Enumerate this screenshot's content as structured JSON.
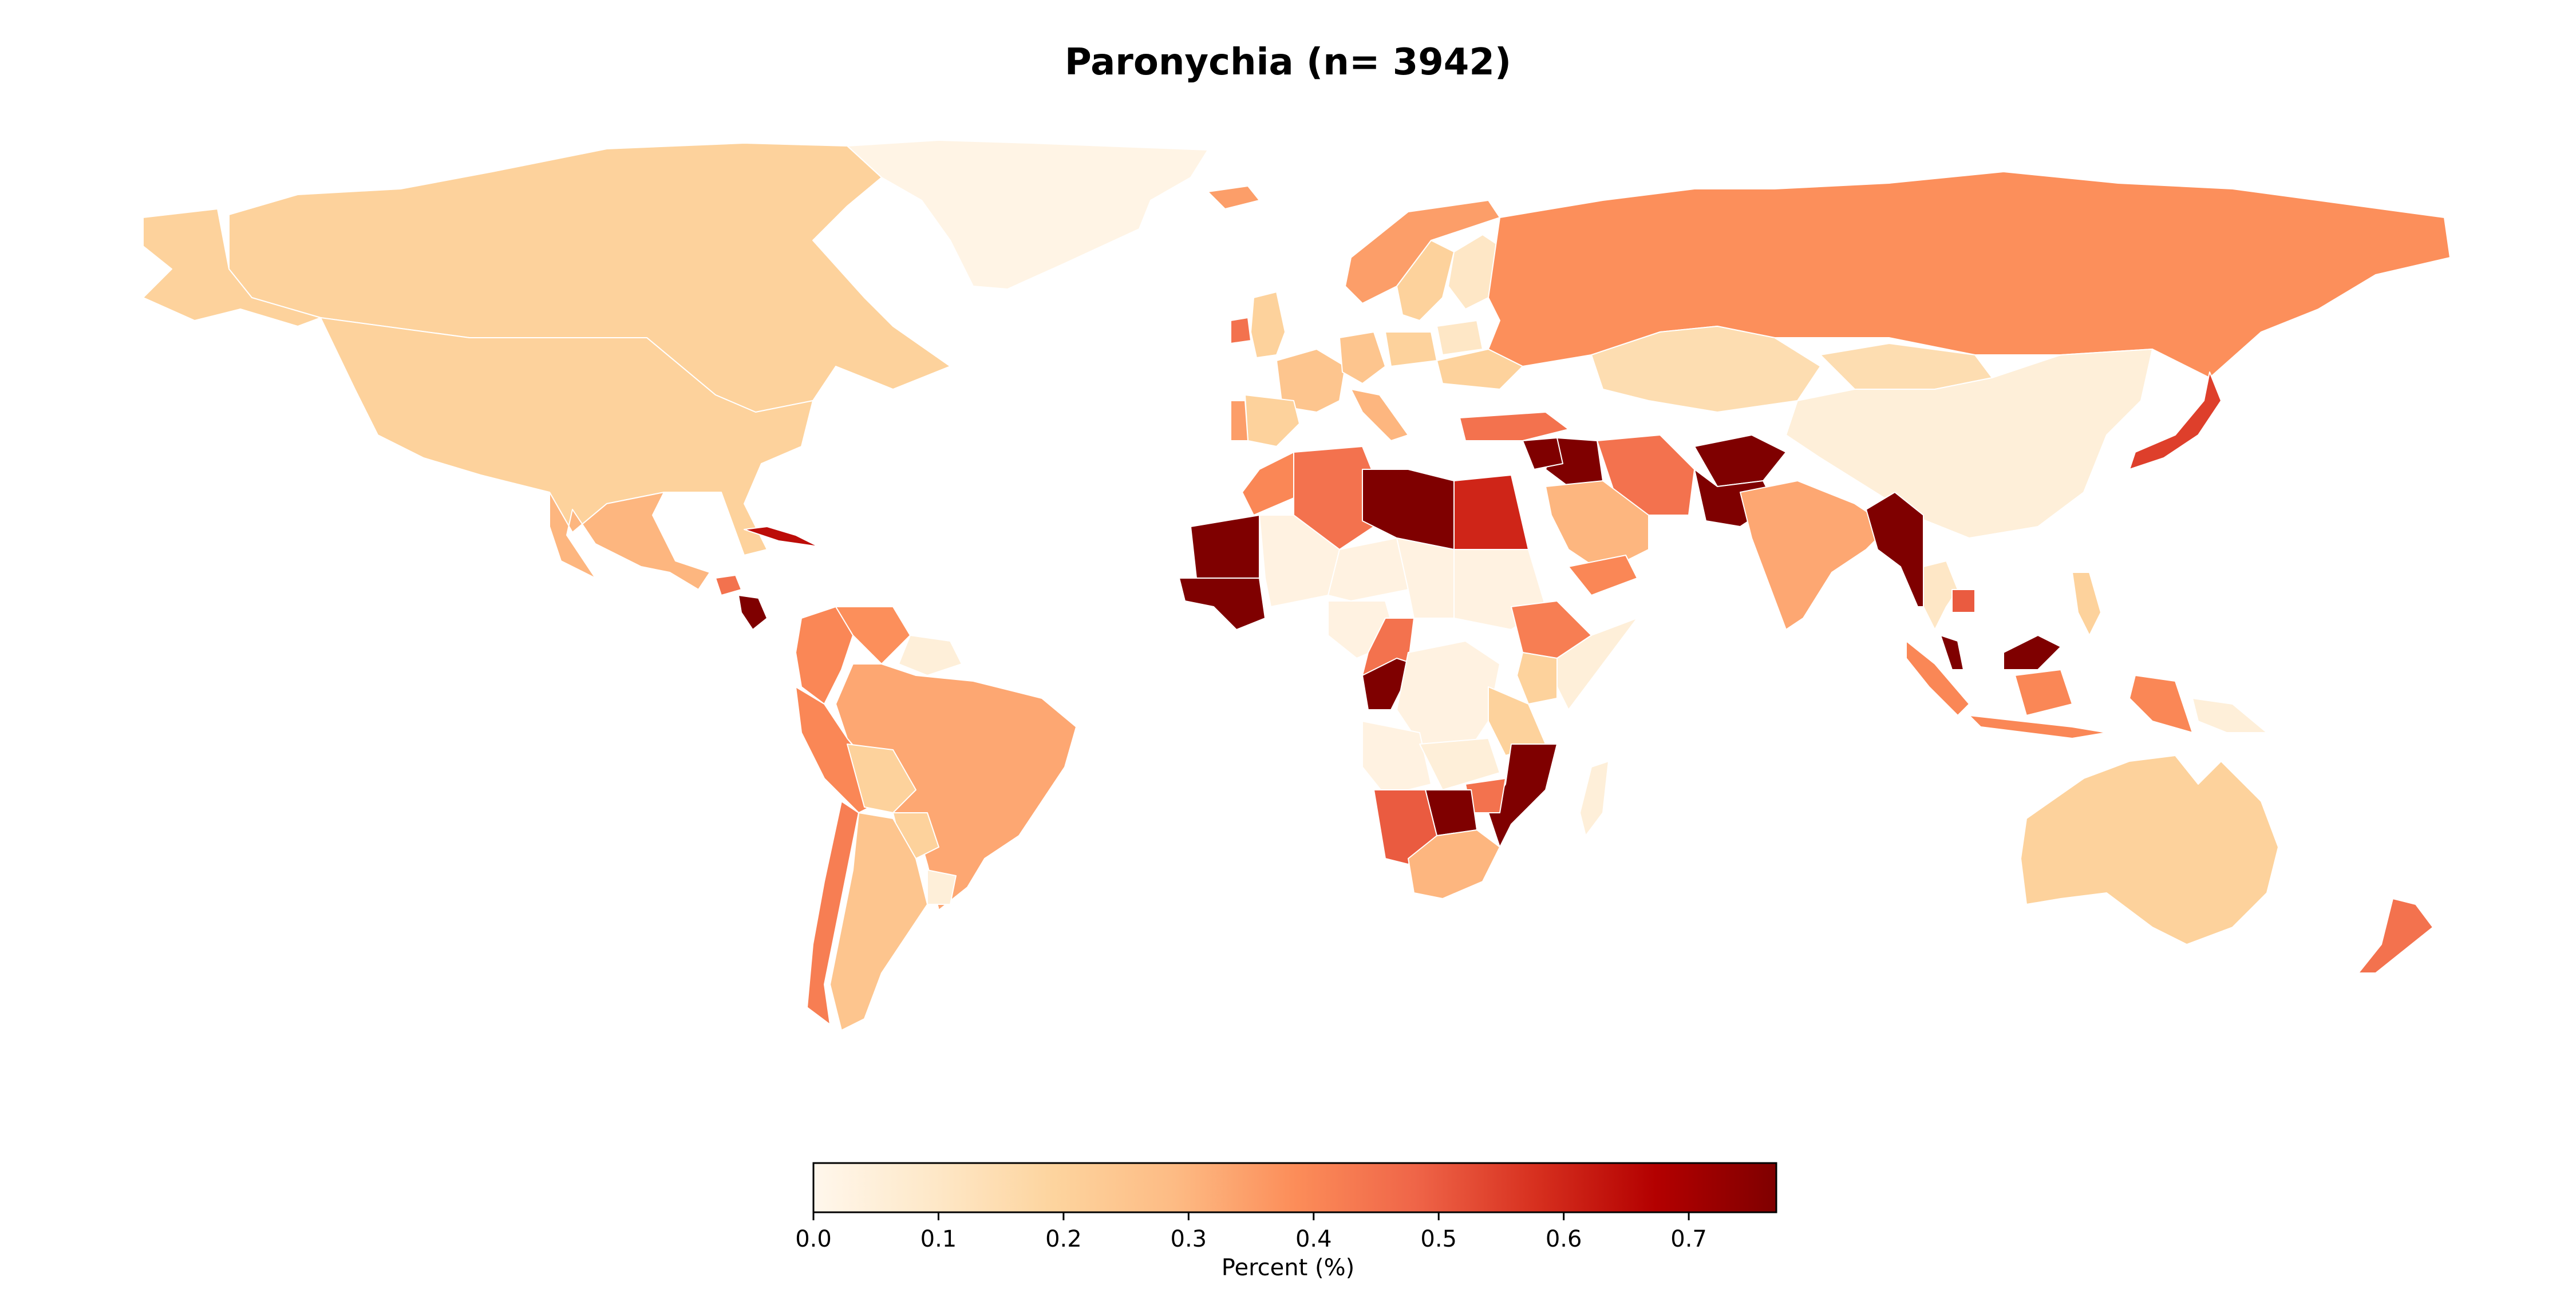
{
  "title": "Paronychia (n= 3942)",
  "colorbar": {
    "label": "Percent (%)",
    "min": 0.0,
    "max": 0.77,
    "ticks": [
      "0.0",
      "0.1",
      "0.2",
      "0.3",
      "0.4",
      "0.5",
      "0.6",
      "0.7"
    ],
    "tick_values": [
      0.0,
      0.1,
      0.2,
      0.3,
      0.4,
      0.5,
      0.6,
      0.7
    ],
    "colormap": "OrRd",
    "colors": [
      "#fff7ec",
      "#fee8c8",
      "#fdd49e",
      "#fdbb84",
      "#fc8d59",
      "#ef6548",
      "#d7301f",
      "#b30000",
      "#7f0000"
    ]
  },
  "chart_data": {
    "type": "choropleth",
    "title": "Paronychia (n= 3942)",
    "legend_label": "Percent (%)",
    "value_range": [
      0.0,
      0.77
    ],
    "regions": [
      {
        "name": "Greenland",
        "value": 0.02
      },
      {
        "name": "Canada",
        "value": 0.2
      },
      {
        "name": "United States",
        "value": 0.2
      },
      {
        "name": "Alaska",
        "value": 0.2
      },
      {
        "name": "Mexico",
        "value": 0.3
      },
      {
        "name": "Cuba",
        "value": 0.65
      },
      {
        "name": "Guatemala",
        "value": 0.45
      },
      {
        "name": "Nicaragua",
        "value": 0.77
      },
      {
        "name": "Colombia",
        "value": 0.4
      },
      {
        "name": "Venezuela",
        "value": 0.38
      },
      {
        "name": "Guyana",
        "value": 0.05
      },
      {
        "name": "Peru",
        "value": 0.4
      },
      {
        "name": "Brazil",
        "value": 0.33
      },
      {
        "name": "Bolivia",
        "value": 0.2
      },
      {
        "name": "Paraguay",
        "value": 0.2
      },
      {
        "name": "Uruguay",
        "value": 0.05
      },
      {
        "name": "Chile",
        "value": 0.42
      },
      {
        "name": "Argentina",
        "value": 0.25
      },
      {
        "name": "Iceland",
        "value": 0.35
      },
      {
        "name": "United Kingdom",
        "value": 0.2
      },
      {
        "name": "Ireland",
        "value": 0.45
      },
      {
        "name": "Norway",
        "value": 0.35
      },
      {
        "name": "Sweden",
        "value": 0.2
      },
      {
        "name": "Finland",
        "value": 0.1
      },
      {
        "name": "France",
        "value": 0.25
      },
      {
        "name": "Spain",
        "value": 0.2
      },
      {
        "name": "Portugal",
        "value": 0.35
      },
      {
        "name": "Germany",
        "value": 0.25
      },
      {
        "name": "Italy",
        "value": 0.3
      },
      {
        "name": "Poland",
        "value": 0.2
      },
      {
        "name": "Ukraine",
        "value": 0.2
      },
      {
        "name": "Belarus",
        "value": 0.1
      },
      {
        "name": "Russia",
        "value": 0.38
      },
      {
        "name": "Kazakhstan",
        "value": 0.15
      },
      {
        "name": "Mongolia",
        "value": 0.15
      },
      {
        "name": "China",
        "value": 0.05
      },
      {
        "name": "Japan",
        "value": 0.55
      },
      {
        "name": "Turkey",
        "value": 0.45
      },
      {
        "name": "Iraq",
        "value": 0.77
      },
      {
        "name": "Syria",
        "value": 0.77
      },
      {
        "name": "Iran",
        "value": 0.45
      },
      {
        "name": "Saudi Arabia",
        "value": 0.3
      },
      {
        "name": "Yemen",
        "value": 0.4
      },
      {
        "name": "Afghanistan",
        "value": 0.77
      },
      {
        "name": "Pakistan",
        "value": 0.77
      },
      {
        "name": "India",
        "value": 0.33
      },
      {
        "name": "Myanmar",
        "value": 0.77
      },
      {
        "name": "Thailand",
        "value": 0.1
      },
      {
        "name": "Cambodia",
        "value": 0.5
      },
      {
        "name": "Malaysia",
        "value": 0.77
      },
      {
        "name": "Indonesia",
        "value": 0.4
      },
      {
        "name": "Philippines",
        "value": 0.2
      },
      {
        "name": "Papua New Guinea",
        "value": 0.05
      },
      {
        "name": "Australia",
        "value": 0.2
      },
      {
        "name": "New Zealand",
        "value": 0.45
      },
      {
        "name": "Morocco",
        "value": 0.4
      },
      {
        "name": "Algeria",
        "value": 0.45
      },
      {
        "name": "Libya",
        "value": 0.77
      },
      {
        "name": "Egypt",
        "value": 0.6
      },
      {
        "name": "Mauritania",
        "value": 0.77
      },
      {
        "name": "Senegal",
        "value": 0.77
      },
      {
        "name": "Mali",
        "value": 0.03
      },
      {
        "name": "Niger",
        "value": 0.03
      },
      {
        "name": "Chad",
        "value": 0.03
      },
      {
        "name": "Sudan",
        "value": 0.03
      },
      {
        "name": "Ethiopia",
        "value": 0.42
      },
      {
        "name": "Somalia",
        "value": 0.05
      },
      {
        "name": "Nigeria",
        "value": 0.03
      },
      {
        "name": "Cameroon",
        "value": 0.45
      },
      {
        "name": "Congo",
        "value": 0.77
      },
      {
        "name": "DR Congo",
        "value": 0.03
      },
      {
        "name": "Kenya",
        "value": 0.2
      },
      {
        "name": "Tanzania",
        "value": 0.2
      },
      {
        "name": "Angola",
        "value": 0.03
      },
      {
        "name": "Zambia",
        "value": 0.05
      },
      {
        "name": "Mozambique",
        "value": 0.77
      },
      {
        "name": "Zimbabwe",
        "value": 0.45
      },
      {
        "name": "Botswana",
        "value": 0.77
      },
      {
        "name": "Namibia",
        "value": 0.5
      },
      {
        "name": "South Africa",
        "value": 0.3
      },
      {
        "name": "Madagascar",
        "value": 0.05
      }
    ]
  }
}
